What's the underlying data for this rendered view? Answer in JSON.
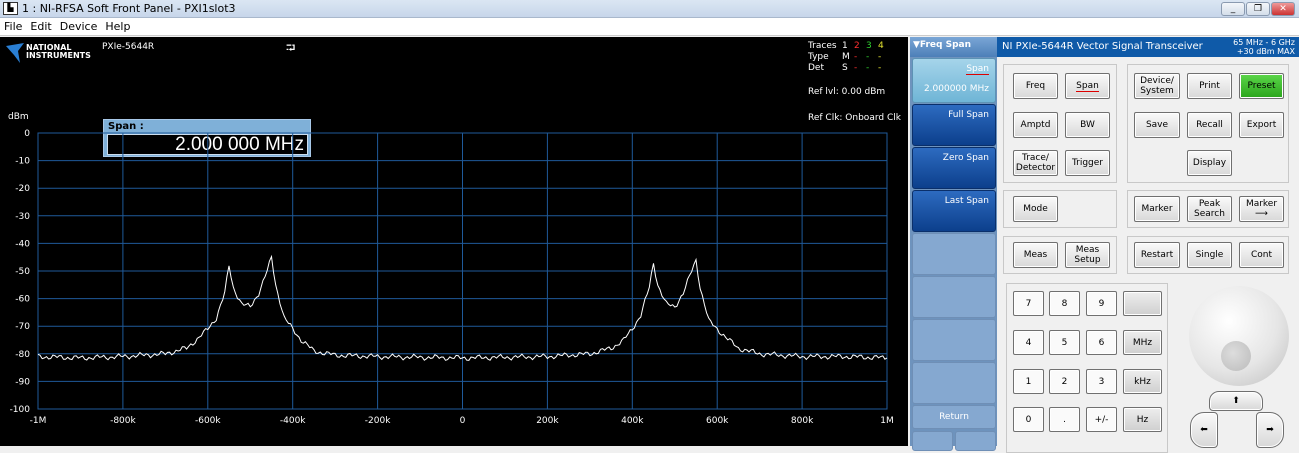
{
  "window": {
    "title": "1 : NI-RFSA Soft Front Panel - PXI1slot3"
  },
  "menu": [
    "File",
    "Edit",
    "Device",
    "Help"
  ],
  "display": {
    "logo_text": "NATIONAL INSTRUMENTS",
    "device": "PXIe-5644R",
    "span_label": "Span :",
    "span_value": "2.000 000 MHz",
    "traces": {
      "label": "Traces",
      "nums": [
        "1",
        "2",
        "3",
        "4"
      ],
      "type_label": "Type",
      "type": [
        "M",
        "-",
        "-",
        "-"
      ],
      "det_label": "Det",
      "det": [
        "S",
        "-",
        "-",
        "-"
      ]
    },
    "trace_colors": [
      "#ffffff",
      "#ff3030",
      "#30d030",
      "#e0e030"
    ],
    "ref_level": "Ref lvl: 0.00 dBm",
    "ref_clk": "Ref Clk: Onboard Clk"
  },
  "chart_data": {
    "type": "line",
    "ylabel": "dBm",
    "xlim": [
      -1000000,
      1000000
    ],
    "ylim": [
      -100,
      0
    ],
    "grid": true,
    "xticks": [
      "-1M",
      "-800k",
      "-600k",
      "-400k",
      "-200k",
      "0",
      "200k",
      "400k",
      "600k",
      "800k",
      "1M"
    ],
    "yticks": [
      "0",
      "-10",
      "-20",
      "-30",
      "-40",
      "-50",
      "-60",
      "-70",
      "-80",
      "-90",
      "-100"
    ],
    "x": [
      -1000000,
      -900000,
      -800000,
      -700000,
      -650000,
      -620000,
      -600000,
      -580000,
      -560000,
      -550000,
      -540000,
      -520000,
      -500000,
      -480000,
      -460000,
      -450000,
      -440000,
      -420000,
      -400000,
      -380000,
      -350000,
      -300000,
      -200000,
      0,
      200000,
      300000,
      350000,
      380000,
      400000,
      420000,
      440000,
      450000,
      460000,
      480000,
      500000,
      520000,
      540000,
      550000,
      560000,
      580000,
      600000,
      620000,
      650000,
      700000,
      800000,
      900000,
      1000000
    ],
    "y": [
      -81,
      -81.5,
      -81,
      -80,
      -78,
      -74,
      -71,
      -67,
      -58,
      -48,
      -56,
      -62,
      -63,
      -58,
      -50,
      -45,
      -55,
      -67,
      -71,
      -75,
      -79,
      -80.5,
      -81,
      -81.5,
      -81,
      -80,
      -78,
      -75,
      -71,
      -66,
      -56,
      -47,
      -55,
      -62,
      -63,
      -58,
      -50,
      -46,
      -56,
      -68,
      -71,
      -74,
      -78,
      -80,
      -81,
      -81,
      -81.5
    ],
    "line_color": "#ffffff",
    "grid_color": "#1f5a9a"
  },
  "softkeys": {
    "header": "Freq Span",
    "span": "Span",
    "span_value": "2.000000 MHz",
    "full": "Full Span",
    "zero": "Zero Span",
    "last": "Last Span",
    "return": "Return"
  },
  "panel": {
    "title": "NI PXIe-5644R Vector Signal Transceiver",
    "range1": "65 MHz - 6 GHz",
    "range2": "+30 dBm MAX",
    "buttons": {
      "freq": "Freq",
      "span": "Span",
      "amptd": "Amptd",
      "bw": "BW",
      "trace1": "Trace/",
      "trace2": "Detector",
      "trigger": "Trigger",
      "dev1": "Device/",
      "dev2": "System",
      "print": "Print",
      "preset": "Preset",
      "save": "Save",
      "recall": "Recall",
      "export": "Export",
      "display": "Display",
      "mode": "Mode",
      "marker": "Marker",
      "peak1": "Peak",
      "peak2": "Search",
      "markto": "Marker",
      "meas": "Meas",
      "meas_setup1": "Meas",
      "meas_setup2": "Setup",
      "restart": "Restart",
      "single": "Single",
      "cont": "Cont"
    },
    "keypad": [
      [
        "7",
        "8",
        "9",
        ""
      ],
      [
        "4",
        "5",
        "6",
        "MHz"
      ],
      [
        "1",
        "2",
        "3",
        "kHz"
      ],
      [
        "0",
        ".",
        "+/-",
        "Hz"
      ]
    ],
    "preset_color": "#3bbd2a",
    "accent": "#0f5aa8"
  }
}
